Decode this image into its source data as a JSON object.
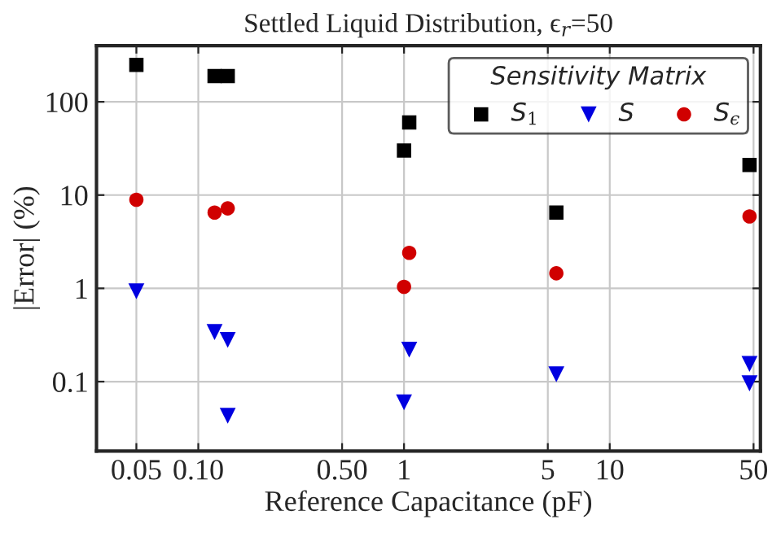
{
  "chart_data": {
    "type": "scatter",
    "title": "Settled Liquid Distribution, ϵ$_{r}$=50",
    "xlabel": "Reference Capacitance (pF)",
    "ylabel": "|Error| (%)",
    "legend_title": "Sensitivity Matrix",
    "log": "xy",
    "grid": true,
    "legend": "top right",
    "xlim": [
      0.032,
      54
    ],
    "ylim": [
      0.018,
      400
    ],
    "xticks": [
      0.05,
      {
        "value": 0.1,
        "label": "0.10"
      },
      {
        "value": 0.5,
        "label": "0.50"
      },
      1,
      5,
      10,
      50
    ],
    "yticks": [
      0.1,
      1,
      10,
      100
    ],
    "series": [
      {
        "name": "S$_{1}$",
        "color": "#000000",
        "marker": "square",
        "x": [
          0.05,
          0.12,
          0.139,
          1.06,
          1.0,
          5.5,
          47.8
        ],
        "values": [
          249,
          189,
          189,
          60,
          30,
          6.5,
          21
        ]
      },
      {
        "name": "S",
        "color": "#0000e0",
        "marker": "triangle",
        "x": [
          0.05,
          0.12,
          0.139,
          0.139,
          1.06,
          1.0,
          5.5,
          47.8,
          47.8
        ],
        "values": [
          0.93,
          0.34,
          0.28,
          0.043,
          0.22,
          0.06,
          0.12,
          0.155,
          0.096
        ]
      },
      {
        "name": "S$_{ϵ}$",
        "color": "#d00000",
        "marker": "circle",
        "x": [
          0.05,
          0.12,
          0.139,
          1.06,
          1.0,
          5.5,
          47.8
        ],
        "values": [
          8.9,
          6.5,
          7.2,
          2.4,
          1.04,
          1.45,
          5.9
        ]
      }
    ]
  }
}
